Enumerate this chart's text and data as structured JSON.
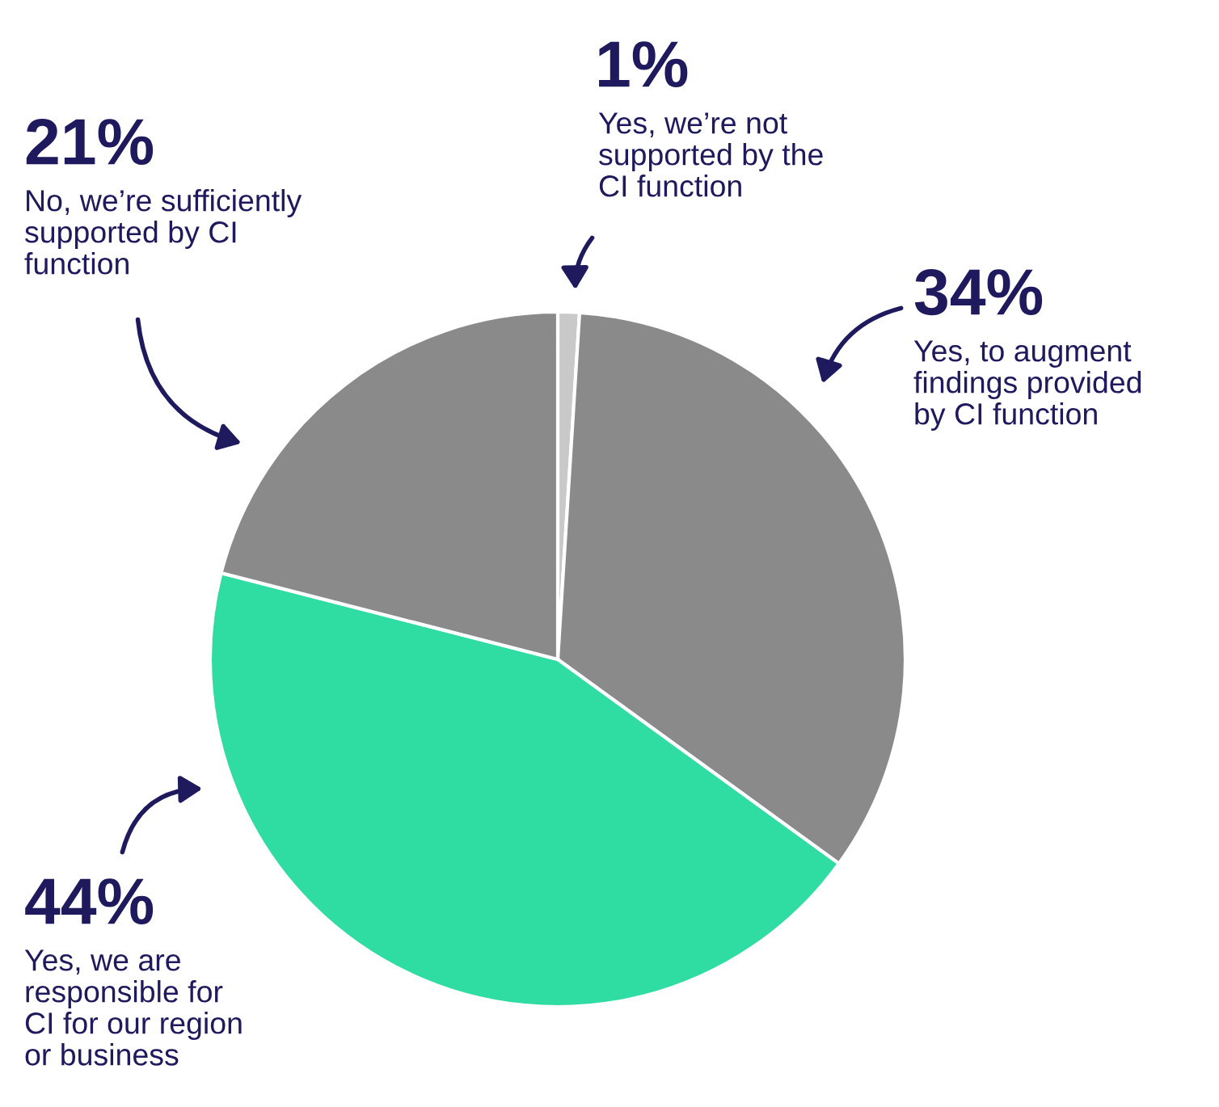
{
  "chart_data": {
    "type": "pie",
    "categories": [
      "Yes, we’re not\nsupported by the\nCI function",
      "Yes, to augment\nfindings provided\nby CI function",
      "Yes, we are\nresponsible for\nCI for our region\nor business",
      "No, we’re sufficiently\nsupported by CI\nfunction"
    ],
    "values": [
      1,
      34,
      44,
      21
    ],
    "value_labels": [
      "1%",
      "34%",
      "44%",
      "21%"
    ],
    "colors": [
      "#c9c9c9",
      "#8a8a8a",
      "#2fdca2",
      "#8a8a8a"
    ]
  }
}
